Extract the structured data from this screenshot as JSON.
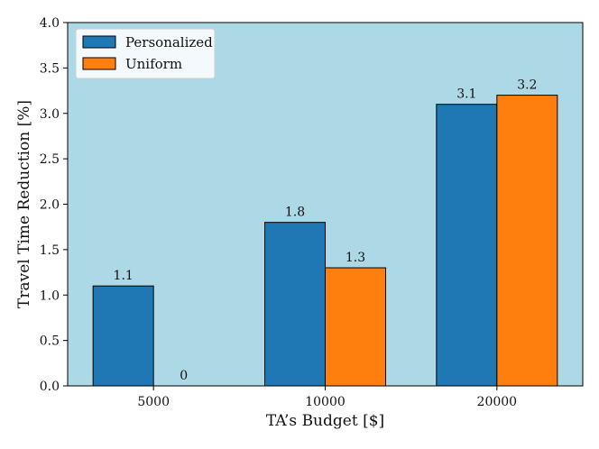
{
  "chart_data": {
    "type": "bar",
    "categories": [
      "5000",
      "10000",
      "20000"
    ],
    "series": [
      {
        "name": "Personalized",
        "values": [
          1.1,
          1.8,
          3.1
        ],
        "color": "#1f77b4"
      },
      {
        "name": "Uniform",
        "values": [
          0,
          1.3,
          3.2
        ],
        "color": "#ff7f0e"
      }
    ],
    "data_labels": [
      [
        "1.1",
        "1.8",
        "3.1"
      ],
      [
        "0",
        "1.3",
        "3.2"
      ]
    ],
    "xlabel": "TA’s Budget [$]",
    "ylabel": "Travel Time Reduction [%]",
    "ylim": [
      0,
      4.0
    ],
    "yticks": [
      "0.0",
      "0.5",
      "1.0",
      "1.5",
      "2.0",
      "2.5",
      "3.0",
      "3.5",
      "4.0"
    ],
    "grid": false,
    "legend_position": "top-left",
    "plot_background": "#add8e6"
  }
}
